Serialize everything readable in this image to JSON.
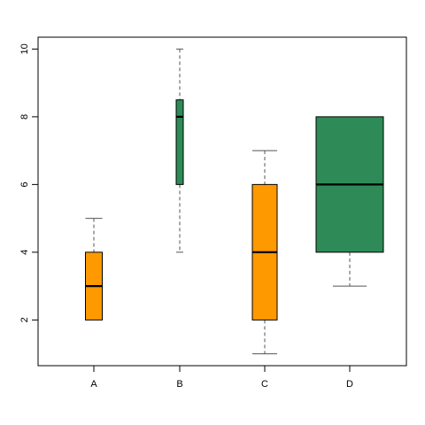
{
  "chart_data": {
    "type": "boxplot",
    "title": "",
    "xlabel": "",
    "ylabel": "",
    "categories": [
      "A",
      "B",
      "C",
      "D"
    ],
    "ylim": [
      0.65,
      10.35
    ],
    "yticks": [
      2,
      4,
      6,
      8,
      10
    ],
    "boxes": [
      {
        "category": "A",
        "min": 2,
        "q1": 2,
        "median": 3,
        "q3": 4,
        "max": 5,
        "color": "#ff9900"
      },
      {
        "category": "B",
        "min": 4,
        "q1": 6,
        "median": 8,
        "q3": 8.5,
        "max": 10,
        "color": "#2e8b57"
      },
      {
        "category": "C",
        "min": 1,
        "q1": 2,
        "median": 4,
        "q3": 6,
        "max": 7,
        "color": "#ff9900"
      },
      {
        "category": "D",
        "min": 3,
        "q1": 4,
        "median": 6,
        "q3": 8,
        "max": 8,
        "color": "#2e8b57"
      }
    ],
    "grid": false,
    "legend": "none"
  }
}
